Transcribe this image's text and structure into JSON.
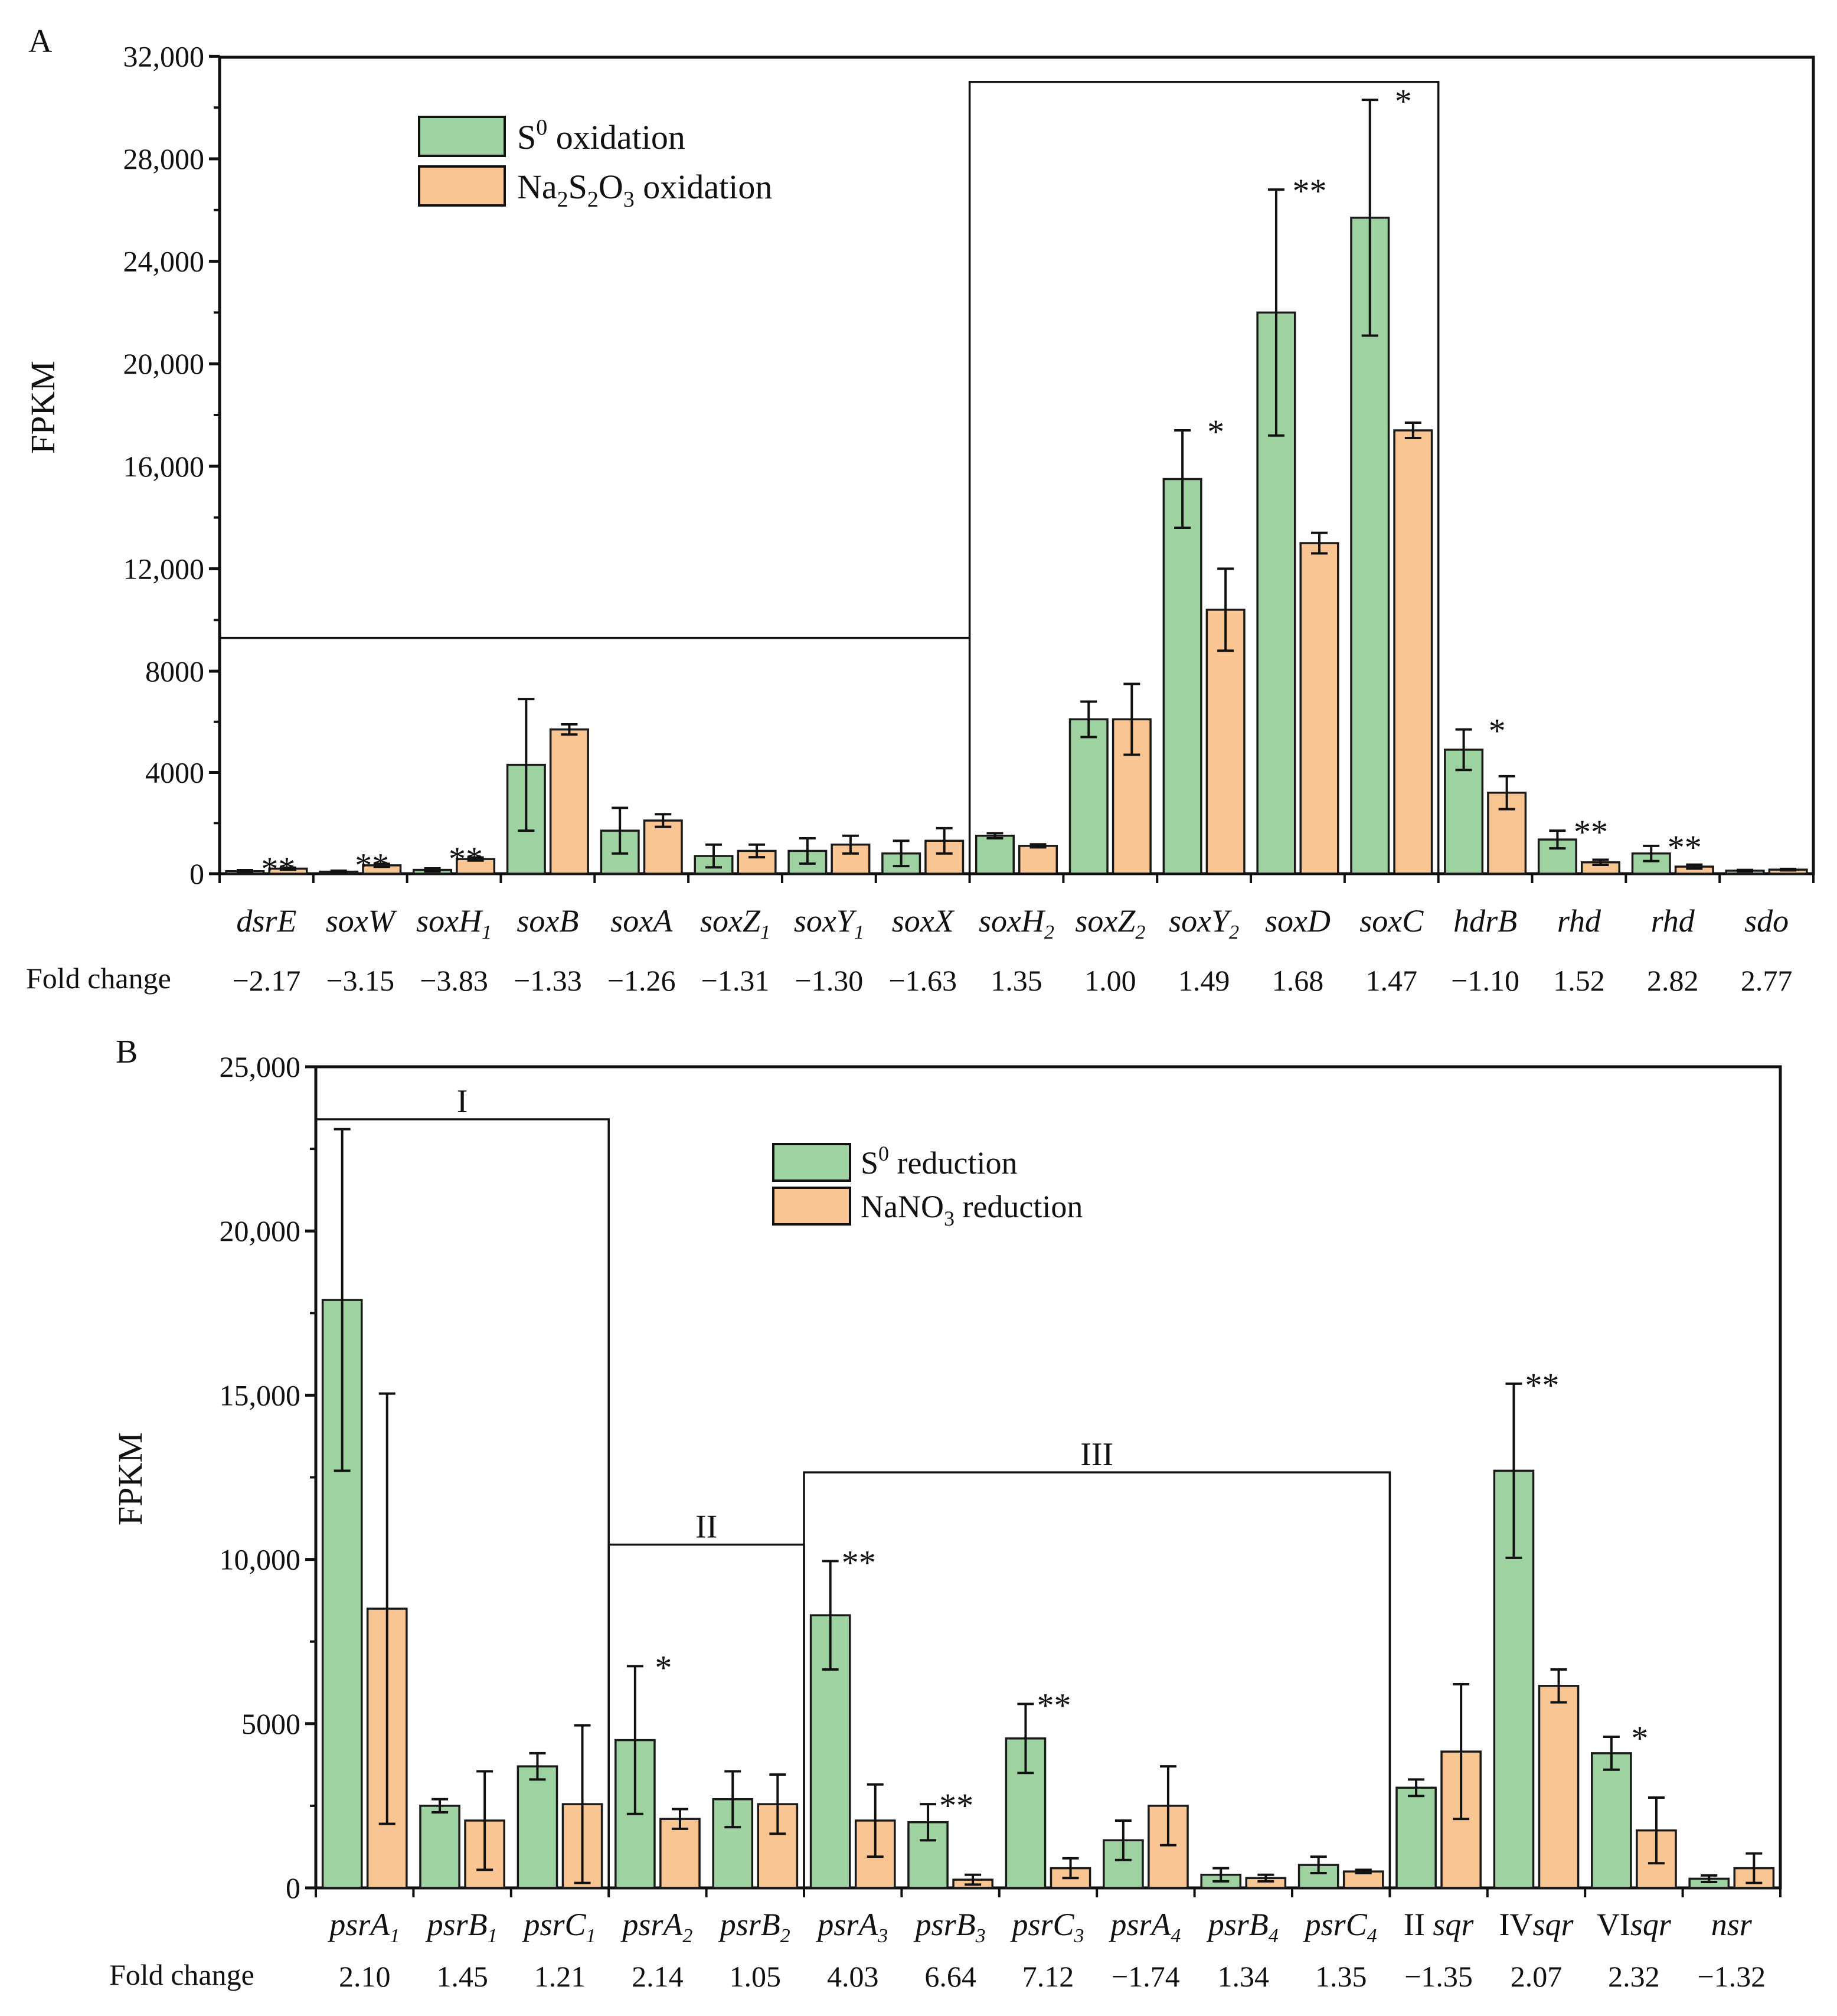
{
  "panels": [
    {
      "label": "A",
      "ylabel": "FPKM",
      "fold_label": "Fold change"
    },
    {
      "label": "B",
      "ylabel": "FPKM",
      "fold_label": "Fold change"
    }
  ],
  "colors": {
    "series1": "#9fd2a1",
    "series2": "#f8c593",
    "edge": "#1a1a1a"
  },
  "chart_data": [
    {
      "type": "bar",
      "panel": "A",
      "ylabel": "FPKM",
      "ylim": [
        0,
        32000
      ],
      "y_ticks": [
        {
          "value": 0,
          "label": "0"
        },
        {
          "value": 4000,
          "label": "4000"
        },
        {
          "value": 8000,
          "label": "8000"
        },
        {
          "value": 12000,
          "label": "12,000"
        },
        {
          "value": 16000,
          "label": "16,000"
        },
        {
          "value": 20000,
          "label": "20,000"
        },
        {
          "value": 24000,
          "label": "24,000"
        },
        {
          "value": 28000,
          "label": "28,000"
        },
        {
          "value": 32000,
          "label": "32,000"
        }
      ],
      "y_scale_note": "axis is compressed below 8000 (0-8000 spans 4000-unit ticks, upper ticks span 4000 units at a wider spacing)",
      "categories": [
        {
          "gene": "dsrE",
          "sub": ""
        },
        {
          "gene": "soxW",
          "sub": ""
        },
        {
          "gene": "soxH",
          "sub": "1"
        },
        {
          "gene": "soxB",
          "sub": ""
        },
        {
          "gene": "soxA",
          "sub": ""
        },
        {
          "gene": "soxZ",
          "sub": "1"
        },
        {
          "gene": "soxY",
          "sub": "1"
        },
        {
          "gene": "soxX",
          "sub": ""
        },
        {
          "gene": "soxH",
          "sub": "2"
        },
        {
          "gene": "soxZ",
          "sub": "2"
        },
        {
          "gene": "soxY",
          "sub": "2"
        },
        {
          "gene": "soxD",
          "sub": ""
        },
        {
          "gene": "soxC",
          "sub": ""
        },
        {
          "gene": "hdrB",
          "sub": ""
        },
        {
          "gene": "rhd",
          "sub": ""
        },
        {
          "gene": "rhd",
          "sub": ""
        },
        {
          "gene": "sdo",
          "sub": ""
        }
      ],
      "fold_change": [
        "−2.17",
        "−3.15",
        "−3.83",
        "−1.33",
        "−1.26",
        "−1.31",
        "−1.30",
        "−1.63",
        "1.35",
        "1.00",
        "1.49",
        "1.68",
        "1.47",
        "−1.10",
        "1.52",
        "2.82",
        "2.77"
      ],
      "series": [
        {
          "name": "S0 oxidation",
          "legend": {
            "base": "S",
            "sup": "0",
            "rest": " oxidation"
          },
          "values": [
            100,
            80,
            150,
            4300,
            1700,
            700,
            900,
            800,
            1500,
            6100,
            15500,
            22000,
            25700,
            4900,
            1350,
            800,
            120
          ],
          "errors": [
            40,
            40,
            60,
            2600,
            900,
            450,
            500,
            500,
            100,
            700,
            1900,
            4800,
            4600,
            800,
            350,
            300,
            30
          ]
        },
        {
          "name": "Na2S2O3 oxidation",
          "legend": {
            "base": "Na",
            "sub1": "2",
            "mid1": "S",
            "sub2": "2",
            "mid2": "O",
            "sub3": "3",
            "rest": " oxidation"
          },
          "values": [
            200,
            330,
            580,
            5700,
            2100,
            900,
            1150,
            1300,
            1100,
            6100,
            10400,
            13000,
            17400,
            3200,
            450,
            280,
            160
          ],
          "errors": [
            40,
            60,
            60,
            200,
            250,
            250,
            350,
            500,
            60,
            1400,
            1600,
            400,
            300,
            650,
            100,
            80,
            30
          ]
        }
      ],
      "significance": [
        "**",
        "**",
        "**",
        "",
        "",
        "",
        "",
        "",
        "",
        "",
        "*",
        "**",
        "*",
        "*",
        "**",
        "**",
        ""
      ]
    },
    {
      "type": "bar",
      "panel": "B",
      "ylabel": "FPKM",
      "ylim": [
        0,
        25000
      ],
      "y_ticks": [
        {
          "value": 0,
          "label": "0"
        },
        {
          "value": 5000,
          "label": "5000"
        },
        {
          "value": 10000,
          "label": "10,000"
        },
        {
          "value": 15000,
          "label": "15,000"
        },
        {
          "value": 20000,
          "label": "20,000"
        },
        {
          "value": 25000,
          "label": "25,000"
        }
      ],
      "categories": [
        {
          "pre": "",
          "gene": "psrA",
          "sub": "1"
        },
        {
          "pre": "",
          "gene": "psrB",
          "sub": "1"
        },
        {
          "pre": "",
          "gene": "psrC",
          "sub": "1"
        },
        {
          "pre": "",
          "gene": "psrA",
          "sub": "2"
        },
        {
          "pre": "",
          "gene": "psrB",
          "sub": "2"
        },
        {
          "pre": "",
          "gene": "psrA",
          "sub": "3"
        },
        {
          "pre": "",
          "gene": "psrB",
          "sub": "3"
        },
        {
          "pre": "",
          "gene": "psrC",
          "sub": "3"
        },
        {
          "pre": "",
          "gene": "psrA",
          "sub": "4"
        },
        {
          "pre": "",
          "gene": "psrB",
          "sub": "4"
        },
        {
          "pre": "",
          "gene": "psrC",
          "sub": "4"
        },
        {
          "pre": "II ",
          "gene": "sqr",
          "sub": ""
        },
        {
          "pre": "IV",
          "gene": "sqr",
          "sub": ""
        },
        {
          "pre": "VI",
          "gene": "sqr",
          "sub": ""
        },
        {
          "pre": "",
          "gene": "nsr",
          "sub": ""
        }
      ],
      "fold_change": [
        "2.10",
        "1.45",
        "1.21",
        "2.14",
        "1.05",
        "4.03",
        "6.64",
        "7.12",
        "−1.74",
        "1.34",
        "1.35",
        "−1.35",
        "2.07",
        "2.32",
        "−1.32"
      ],
      "series": [
        {
          "name": "S0 reduction",
          "legend": {
            "base": "S",
            "sup": "0",
            "rest": " reduction"
          },
          "values": [
            17900,
            2500,
            3700,
            4500,
            2700,
            8300,
            2000,
            4550,
            1450,
            400,
            700,
            3050,
            12700,
            4100,
            280
          ],
          "errors": [
            5200,
            200,
            400,
            2250,
            850,
            1650,
            550,
            1050,
            600,
            200,
            250,
            250,
            2650,
            500,
            100
          ]
        },
        {
          "name": "NaNO3 reduction",
          "legend": {
            "base": "NaNO",
            "sub1": "3",
            "rest": " reduction"
          },
          "values": [
            8500,
            2050,
            2550,
            2100,
            2550,
            2050,
            250,
            600,
            2500,
            300,
            500,
            4150,
            6150,
            1750,
            600
          ],
          "errors": [
            6550,
            1500,
            2400,
            300,
            900,
            1100,
            150,
            300,
            1200,
            100,
            50,
            2050,
            500,
            1000,
            450
          ]
        }
      ],
      "significance": [
        "",
        "",
        "",
        "*",
        "",
        "**",
        "**",
        "**",
        "",
        "",
        "",
        "",
        "**",
        "*",
        ""
      ],
      "groups": [
        {
          "label": "I",
          "from": 0,
          "to": 2
        },
        {
          "label": "II",
          "from": 3,
          "to": 4
        },
        {
          "label": "III",
          "from": 5,
          "to": 10
        }
      ]
    }
  ]
}
